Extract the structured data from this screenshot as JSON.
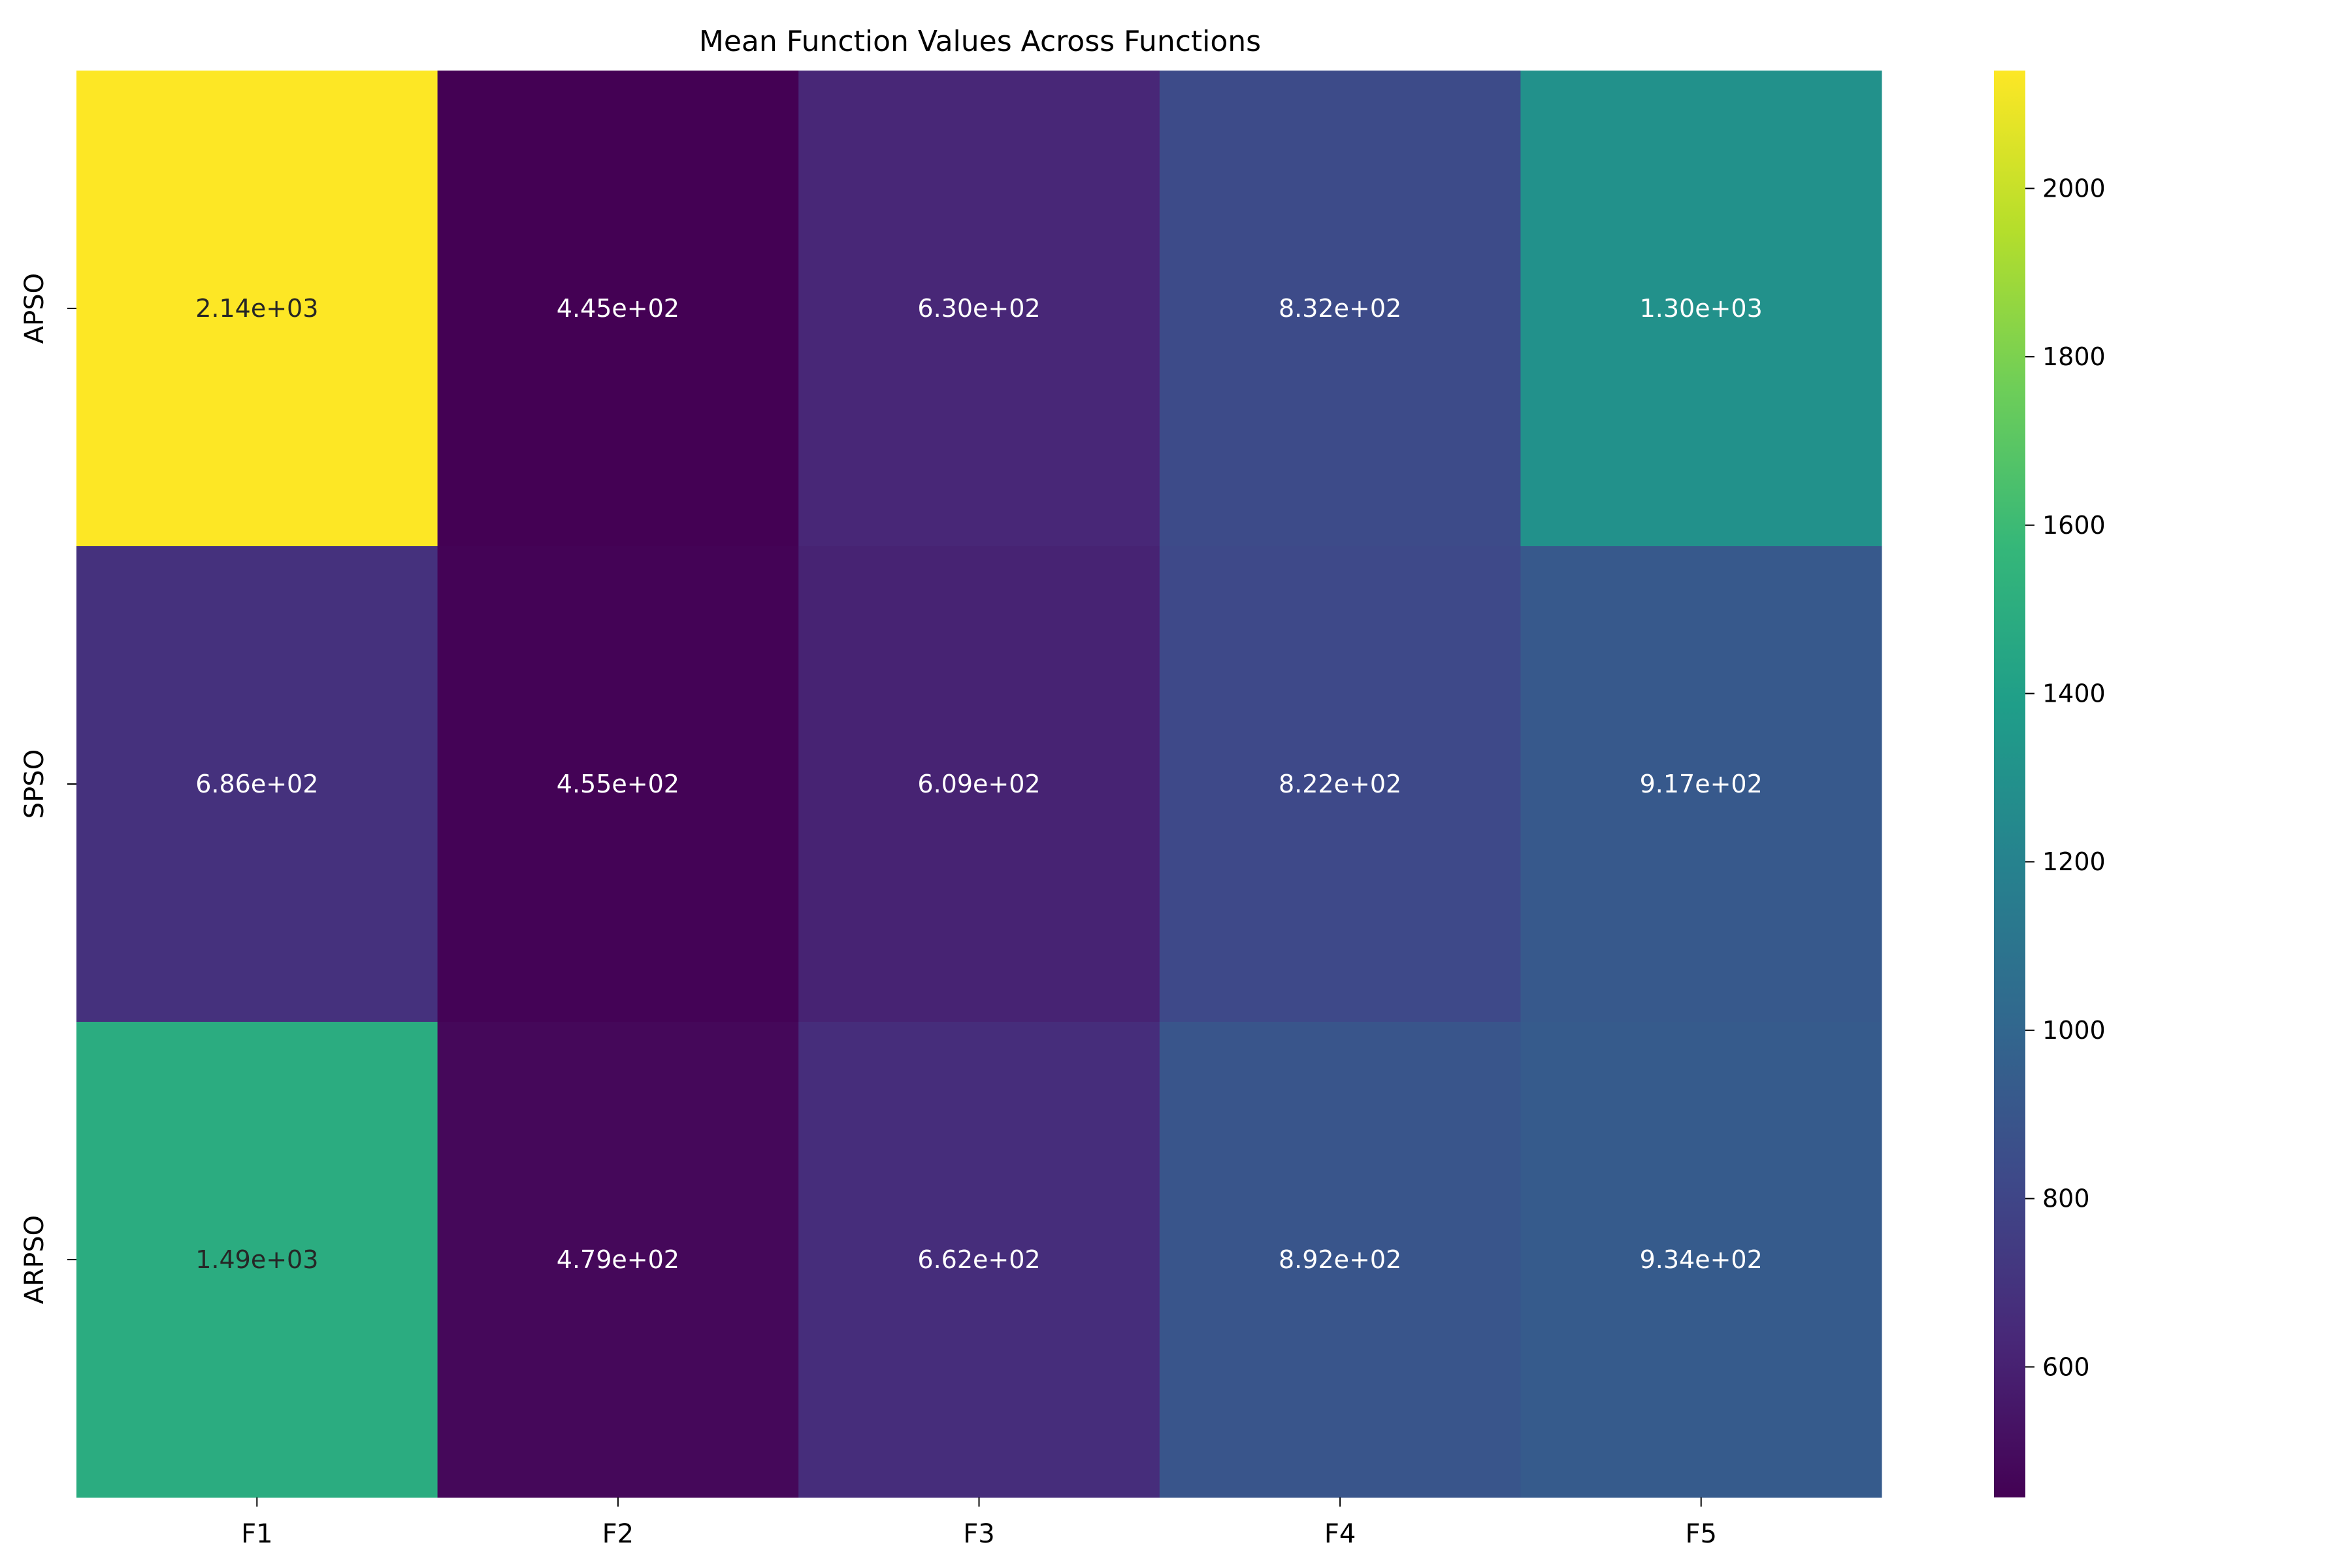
{
  "chart_data": {
    "type": "heatmap",
    "title": "Mean Function Values Across Functions",
    "xlabel": "",
    "ylabel": "",
    "x_categories": [
      "F1",
      "F2",
      "F3",
      "F4",
      "F5"
    ],
    "y_categories": [
      "APSO",
      "SPSO",
      "ARPSO"
    ],
    "values": [
      [
        2140,
        445,
        630,
        832,
        1300
      ],
      [
        686,
        455,
        609,
        822,
        917
      ],
      [
        1490,
        479,
        662,
        892,
        934
      ]
    ],
    "cell_labels": [
      [
        "2.14e+03",
        "4.45e+02",
        "6.30e+02",
        "8.32e+02",
        "1.30e+03"
      ],
      [
        "6.86e+02",
        "4.55e+02",
        "6.09e+02",
        "8.22e+02",
        "9.17e+02"
      ],
      [
        "1.49e+03",
        "4.79e+02",
        "6.62e+02",
        "8.92e+02",
        "9.34e+02"
      ]
    ],
    "colormap": "viridis",
    "colorbar": {
      "min": 445,
      "max": 2140,
      "ticks": [
        600,
        800,
        1000,
        1200,
        1400,
        1600,
        1800,
        2000
      ],
      "tick_labels": [
        "600",
        "800",
        "1000",
        "1200",
        "1400",
        "1600",
        "1800",
        "2000"
      ]
    },
    "grid": false,
    "legend": "colorbar-right"
  }
}
